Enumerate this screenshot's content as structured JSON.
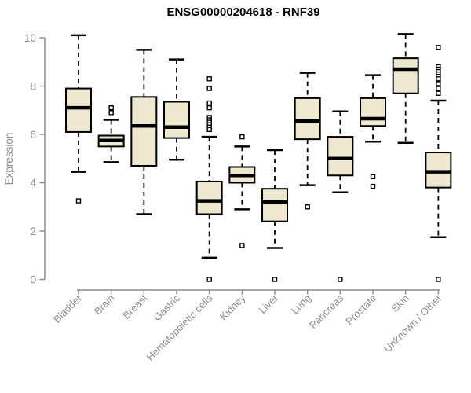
{
  "chart_data": {
    "type": "boxplot",
    "title": "ENSG00000204618 - RNF39",
    "ylabel": "Expression",
    "xlabel": "",
    "ylim": [
      0,
      10
    ],
    "yticks": [
      0,
      2,
      4,
      6,
      8,
      10
    ],
    "grid": false,
    "legend": "none",
    "categories": [
      "Bladder",
      "Brain",
      "Breast",
      "Gastric",
      "Hematopoietic cells",
      "Kidney",
      "Liver",
      "Lung",
      "Pancreas",
      "Prostate",
      "Skin",
      "Unknown / Other"
    ],
    "boxes": [
      {
        "category": "Bladder",
        "whisker_low": 4.45,
        "q1": 6.1,
        "median": 7.1,
        "q3": 7.9,
        "whisker_high": 10.1,
        "outliers": [
          3.25
        ]
      },
      {
        "category": "Brain",
        "whisker_low": 4.85,
        "q1": 5.5,
        "median": 5.75,
        "q3": 5.95,
        "whisker_high": 6.6,
        "outliers": [
          7.1,
          6.9
        ]
      },
      {
        "category": "Breast",
        "whisker_low": 2.7,
        "q1": 4.7,
        "median": 6.35,
        "q3": 7.55,
        "whisker_high": 9.5,
        "outliers": []
      },
      {
        "category": "Gastric",
        "whisker_low": 4.95,
        "q1": 5.85,
        "median": 6.3,
        "q3": 7.35,
        "whisker_high": 9.1,
        "outliers": []
      },
      {
        "category": "Hematopoietic cells",
        "whisker_low": 0.9,
        "q1": 2.7,
        "median": 3.25,
        "q3": 4.05,
        "whisker_high": 5.9,
        "outliers": [
          8.3,
          7.9,
          7.3,
          7.1,
          6.7,
          6.6,
          6.5,
          6.4,
          6.3,
          6.2,
          0
        ]
      },
      {
        "category": "Kidney",
        "whisker_low": 2.9,
        "q1": 4.0,
        "median": 4.3,
        "q3": 4.65,
        "whisker_high": 5.5,
        "outliers": [
          5.9,
          1.4
        ]
      },
      {
        "category": "Liver",
        "whisker_low": 1.3,
        "q1": 2.4,
        "median": 3.2,
        "q3": 3.75,
        "whisker_high": 5.35,
        "outliers": [
          0
        ]
      },
      {
        "category": "Lung",
        "whisker_low": 3.9,
        "q1": 5.8,
        "median": 6.55,
        "q3": 7.5,
        "whisker_high": 8.55,
        "outliers": [
          3.0
        ]
      },
      {
        "category": "Pancreas",
        "whisker_low": 3.6,
        "q1": 4.3,
        "median": 5.0,
        "q3": 5.9,
        "whisker_high": 6.95,
        "outliers": [
          0
        ]
      },
      {
        "category": "Prostate",
        "whisker_low": 5.7,
        "q1": 6.35,
        "median": 6.65,
        "q3": 7.5,
        "whisker_high": 8.45,
        "outliers": [
          4.25,
          3.85
        ]
      },
      {
        "category": "Skin",
        "whisker_low": 5.65,
        "q1": 7.7,
        "median": 8.7,
        "q3": 9.15,
        "whisker_high": 10.15,
        "outliers": []
      },
      {
        "category": "Unknown / Other",
        "whisker_low": 1.75,
        "q1": 3.8,
        "median": 4.45,
        "q3": 5.25,
        "whisker_high": 7.4,
        "outliers": [
          9.6,
          8.8,
          8.7,
          8.6,
          8.5,
          8.4,
          8.3,
          8.1,
          7.9,
          7.7,
          0
        ]
      }
    ],
    "style": {
      "box_fill": "#EEE8CF",
      "box_stroke": "#000000",
      "median_color": "#000000",
      "whisker_color": "#000000",
      "outlier_stroke": "#000000",
      "outlier_fill": "#FFFFFF",
      "axis_color": "#8C8C8C",
      "title_color": "#000000",
      "background": "#FFFFFF"
    }
  }
}
